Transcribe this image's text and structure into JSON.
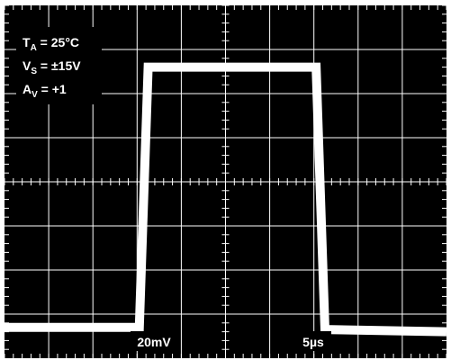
{
  "chart_data": {
    "type": "line",
    "title": "",
    "xlabel": "",
    "ylabel": "",
    "grid": true,
    "grid_divisions": {
      "x": 10,
      "y": 8
    },
    "grid_color": "#ffffff",
    "background_color": "#000000",
    "trace_color": "#ffffff",
    "conditions": [
      {
        "sym": "T",
        "sub": "A",
        "rest": " = 25°C"
      },
      {
        "sym": "V",
        "sub": "S",
        "rest": " = ±15V"
      },
      {
        "sym": "A",
        "sub": "V",
        "rest": " = +1"
      }
    ],
    "vertical_scale": "20mV",
    "horizontal_scale": "5µs",
    "xlim": [
      0,
      10
    ],
    "ylim": [
      0,
      8
    ],
    "series": [
      {
        "x": [
          0,
          3.05,
          3.25,
          7.05,
          7.25,
          10
        ],
        "y": [
          0.7,
          0.7,
          6.6,
          6.6,
          0.65,
          0.6
        ]
      }
    ]
  }
}
